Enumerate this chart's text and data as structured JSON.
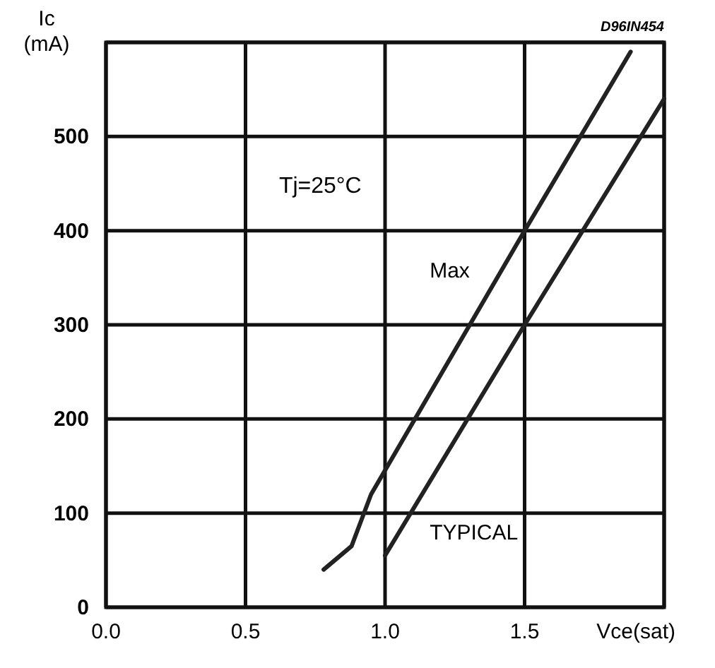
{
  "chart_data": {
    "type": "line",
    "xlabel": "Vce(sat)",
    "ylabel": "Ic (mA)",
    "xlim": [
      0,
      2
    ],
    "ylim": [
      0,
      600
    ],
    "xticks": [
      {
        "value": 0,
        "label": "0.0"
      },
      {
        "value": 0.5,
        "label": "0.5"
      },
      {
        "value": 1,
        "label": "1.0"
      },
      {
        "value": 1.5,
        "label": "1.5"
      },
      {
        "value": 2,
        "label": null
      }
    ],
    "yticks": [
      0,
      100,
      200,
      300,
      400,
      500,
      {
        "value": 600,
        "label": null
      }
    ],
    "grid": true,
    "marker": "none",
    "line_style": "solid",
    "series": [
      {
        "name": "Max",
        "color": "#222222",
        "x": [
          0.78,
          0.88,
          0.95,
          1.5,
          1.88
        ],
        "values": [
          40,
          65,
          120,
          400,
          590
        ]
      },
      {
        "name": "TYPICAL",
        "color": "#222222",
        "x": [
          1.0,
          1.5,
          2.0
        ],
        "values": [
          55,
          300,
          540
        ]
      }
    ],
    "annotations": [
      "D96IN454",
      "Tj=25°C"
    ]
  }
}
